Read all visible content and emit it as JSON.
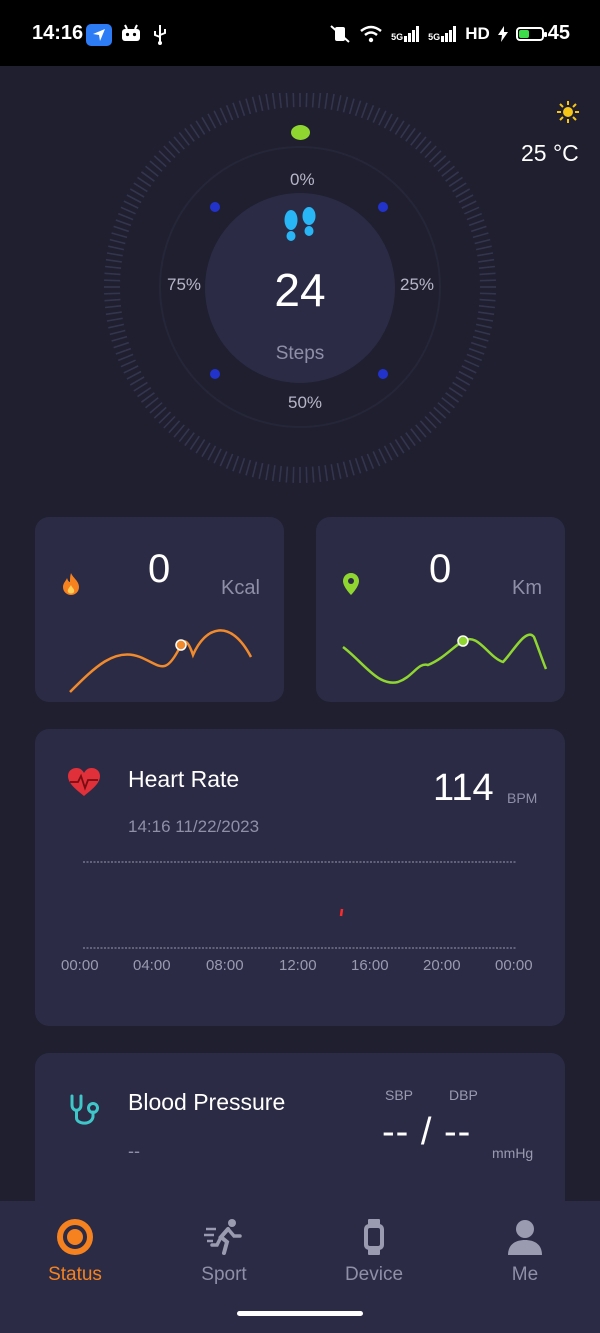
{
  "status_bar": {
    "time": "14:16",
    "network_labels": [
      "5G",
      "5G",
      "HD"
    ],
    "battery_level": "45",
    "battery_fill_fraction": 0.45
  },
  "steps": {
    "value": "24",
    "label": "Steps",
    "pct_top": "0%",
    "pct_right": "25%",
    "pct_bottom": "50%",
    "pct_left": "75%"
  },
  "weather": {
    "temperature": "25 °C"
  },
  "calories": {
    "value": "0",
    "unit": "Kcal"
  },
  "distance": {
    "value": "0",
    "unit": "Km"
  },
  "heart_rate": {
    "title": "Heart Rate",
    "timestamp": "14:16 11/22/2023",
    "value": "114",
    "unit": "BPM",
    "x_ticks": [
      "00:00",
      "04:00",
      "08:00",
      "12:00",
      "16:00",
      "20:00",
      "00:00"
    ]
  },
  "blood_pressure": {
    "title": "Blood Pressure",
    "subtitle": "--",
    "sbp_label": "SBP",
    "dbp_label": "DBP",
    "value": "-- / --",
    "unit": "mmHg"
  },
  "nav": {
    "items": [
      {
        "label": "Status",
        "icon": "status-icon",
        "active": true
      },
      {
        "label": "Sport",
        "icon": "running-icon",
        "active": false
      },
      {
        "label": "Device",
        "icon": "watch-icon",
        "active": false
      },
      {
        "label": "Me",
        "icon": "person-icon",
        "active": false
      }
    ]
  },
  "colors": {
    "background": "#1f1f30",
    "card": "#2b2b45",
    "accent_orange": "#f5821f",
    "accent_green": "#8fd631",
    "heart_red": "#e0303a",
    "stethoscope_teal": "#3ec6c8"
  }
}
